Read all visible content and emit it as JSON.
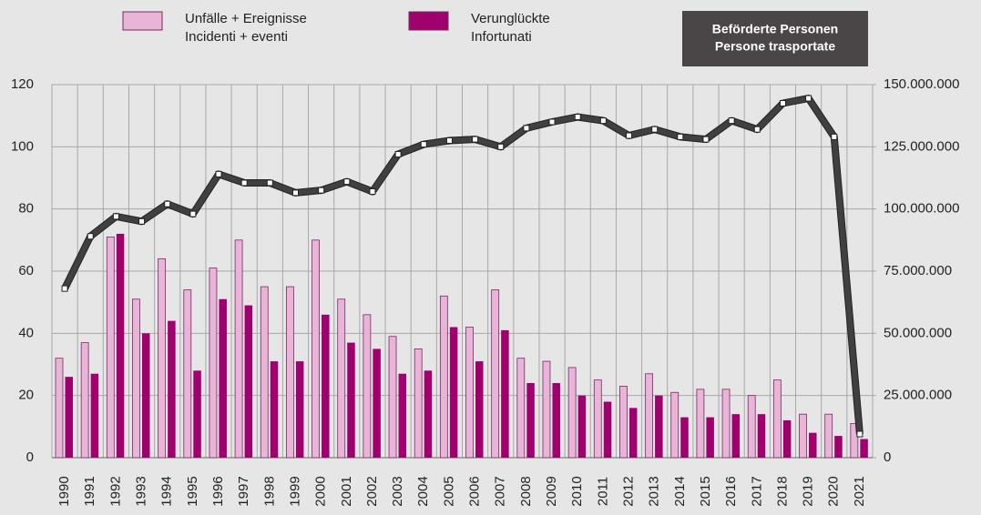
{
  "chart_data": {
    "type": "bar-line",
    "categories": [
      "1990",
      "1991",
      "1992",
      "1993",
      "1994",
      "1995",
      "1996",
      "1997",
      "1998",
      "1999",
      "2000",
      "2001",
      "2002",
      "2003",
      "2004",
      "2005",
      "2006",
      "2007",
      "2008",
      "2009",
      "2010",
      "2011",
      "2012",
      "2013",
      "2014",
      "2015",
      "2016",
      "2017",
      "2018",
      "2019",
      "2020",
      "2021"
    ],
    "series": [
      {
        "name": [
          "Unfälle + Ereignisse",
          "Incidenti + eventi"
        ],
        "color": "#e8b4d8",
        "type": "bar",
        "values": [
          32,
          37,
          71,
          51,
          64,
          54,
          61,
          70,
          55,
          55,
          70,
          51,
          46,
          39,
          35,
          52,
          42,
          54,
          32,
          31,
          29,
          25,
          23,
          27,
          21,
          22,
          22,
          20,
          25,
          14,
          14,
          11
        ]
      },
      {
        "name": [
          "Verunglückte",
          "Infortunati"
        ],
        "color": "#a0006e",
        "type": "bar",
        "values": [
          26,
          27,
          72,
          40,
          44,
          28,
          51,
          49,
          31,
          31,
          46,
          37,
          35,
          27,
          28,
          42,
          31,
          41,
          24,
          24,
          20,
          18,
          16,
          20,
          13,
          13,
          14,
          14,
          12,
          8,
          7,
          6
        ]
      },
      {
        "name": [
          "Beförderte Personen",
          "Persone trasportate"
        ],
        "color": "#404040",
        "type": "line",
        "axis": "y2",
        "values": [
          68000000,
          89000000,
          97000000,
          95000000,
          102000000,
          98000000,
          114000000,
          110500000,
          110500000,
          106500000,
          107500000,
          111000000,
          107000000,
          122000000,
          126000000,
          127500000,
          128000000,
          125000000,
          132500000,
          135000000,
          137000000,
          135500000,
          129500000,
          132000000,
          129000000,
          128000000,
          135500000,
          132000000,
          142500000,
          144500000,
          129000000,
          9500000
        ]
      }
    ],
    "ylim": [
      0,
      120
    ],
    "yticks": [
      0,
      20,
      40,
      60,
      80,
      100,
      120
    ],
    "y2lim": [
      0,
      150000000
    ],
    "y2ticks": [
      0,
      {
        "value": 25000000,
        "label": "25.000.000"
      },
      {
        "value": 50000000,
        "label": "50.000.000"
      },
      {
        "value": 75000000,
        "label": "75.000.000"
      },
      {
        "value": 100000000,
        "label": "100.000.000"
      },
      {
        "value": 125000000,
        "label": "125.000.000"
      },
      {
        "value": 150000000,
        "label": "150.000.000"
      }
    ],
    "grid": true
  }
}
